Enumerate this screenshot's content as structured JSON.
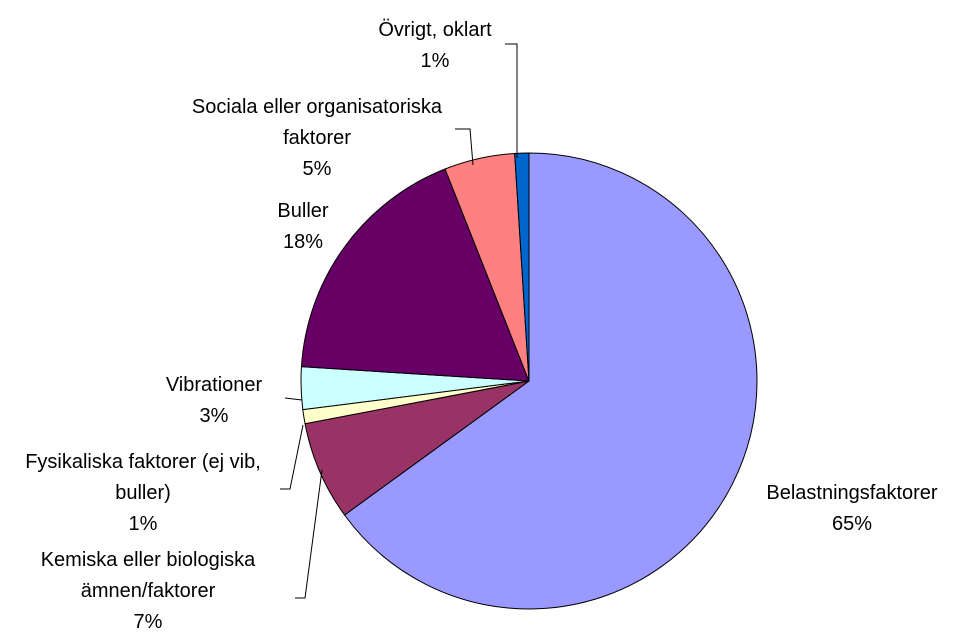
{
  "chart_data": {
    "type": "pie",
    "categories": [
      "Belastningsfaktorer",
      "Kemiska eller biologiska ämnen/faktorer",
      "Fysikaliska faktorer (ej vib, buller)",
      "Vibrationer",
      "Buller",
      "Sociala eller organisatoriska faktorer",
      "Övrigt, oklart"
    ],
    "values": [
      65,
      7,
      1,
      3,
      18,
      5,
      1
    ],
    "value_labels": [
      "65%",
      "7%",
      "1%",
      "3%",
      "18%",
      "5%",
      "1%"
    ],
    "colors": [
      "#9999ff",
      "#993366",
      "#ffffcc",
      "#ccffff",
      "#660066",
      "#ff8080",
      "#0066cc"
    ]
  }
}
